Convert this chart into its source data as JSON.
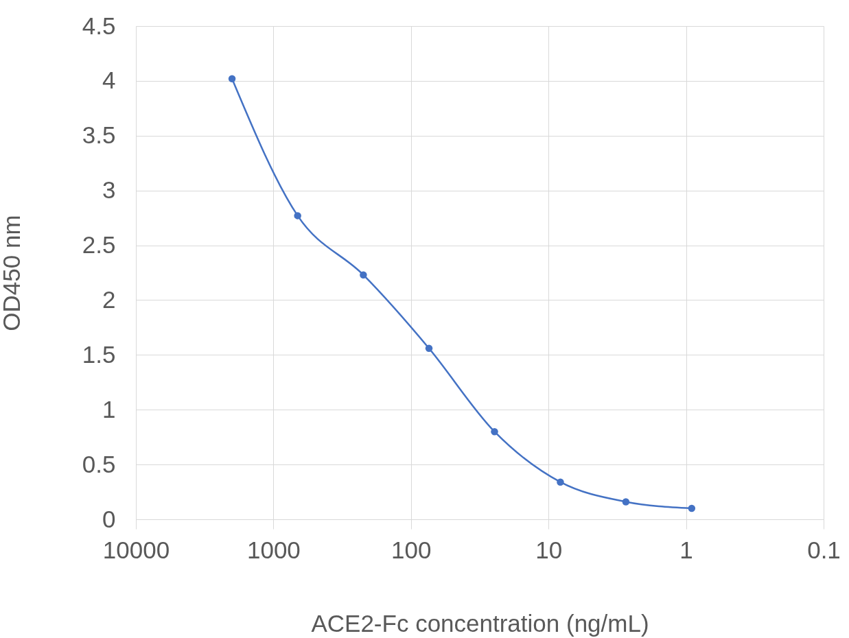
{
  "chart_data": {
    "type": "line",
    "xlabel": "ACE2-Fc concentration (ng/mL)",
    "ylabel": "OD450 nm",
    "x": [
      2000,
      667,
      222,
      74,
      24.7,
      8.2,
      2.74,
      0.91
    ],
    "series": [
      {
        "color": "#4472c4",
        "values": [
          4.02,
          2.77,
          2.23,
          1.56,
          0.8,
          0.34,
          0.16,
          0.1
        ]
      }
    ],
    "log": "x",
    "xlim": [
      10000,
      0.1
    ],
    "xticks": [
      10000,
      1000,
      100,
      10,
      1,
      0.1
    ],
    "ylim": [
      0,
      4.5
    ],
    "yticks": [
      0,
      0.5,
      1,
      1.5,
      2,
      2.5,
      3,
      3.5,
      4,
      4.5
    ],
    "grid": true,
    "marker": "circle",
    "line_style": "solid",
    "legend": false
  }
}
